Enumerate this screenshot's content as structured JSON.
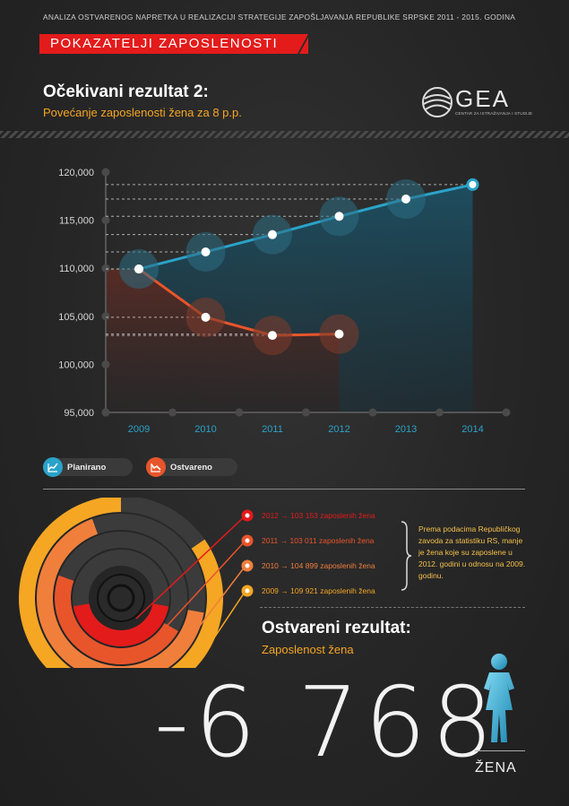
{
  "header": {
    "subtitle": "ANALIZA OSTVARENOG NAPRETKA U REALIZACIJI  STRATEGIJE ZAPOŠLJAVANJA REPUBLIKE SRPSKE 2011 - 2015. GODINA",
    "banner": "POKAZATELJI ZAPOSLENOSTI"
  },
  "section": {
    "title": "Očekivani rezultat 2:",
    "subtitle": "Povećanje  zaposlenosti žena za 8 p.p."
  },
  "logo": {
    "name": "GEA",
    "tagline": "CENTAR ZA ISTRAŽIVANJA I STUDIJE"
  },
  "colors": {
    "planned": "#2aa3c9",
    "actual": "#e8552b",
    "accent": "#f5a623",
    "banner": "#e31b1b"
  },
  "chart_data": {
    "type": "line",
    "x": [
      "2009",
      "2010",
      "2011",
      "2012",
      "2013",
      "2014"
    ],
    "ylim": [
      95000,
      120000
    ],
    "yticks": [
      "95,000",
      "100,000",
      "105,000",
      "110,000",
      "115,000",
      "120,000"
    ],
    "series": [
      {
        "name": "Planirano",
        "values": [
          109921,
          111700,
          113500,
          115400,
          117200,
          118700
        ]
      },
      {
        "name": "Ostvareno",
        "values": [
          109921,
          104899,
          103011,
          103153,
          null,
          null
        ]
      }
    ],
    "legend": "bottom-left"
  },
  "legend": {
    "planned": "Planirano",
    "actual": "Ostvareno"
  },
  "rings": {
    "items": [
      {
        "year": "2012",
        "text": "→ 103 153 zaposlenih žena",
        "color": "#e31b1b"
      },
      {
        "year": "2011",
        "text": "→ 103 011 zaposlenih žena",
        "color": "#e8552b"
      },
      {
        "year": "2010",
        "text": "→ 104 899 zaposlenih žena",
        "color": "#f07f3c"
      },
      {
        "year": "2009",
        "text": "→ 109 921 zaposlenih žena",
        "color": "#f5a623"
      }
    ],
    "note": "Prema podacima Republičkog zavoda za statistiku RS, manje je žena koje su zaposlene u 2012. godini u odnosu na 2009. godinu."
  },
  "result": {
    "title": "Ostvareni rezultat:",
    "subtitle": "Zaposlenost žena",
    "value": "-6 768",
    "unit": "ŽENA"
  }
}
